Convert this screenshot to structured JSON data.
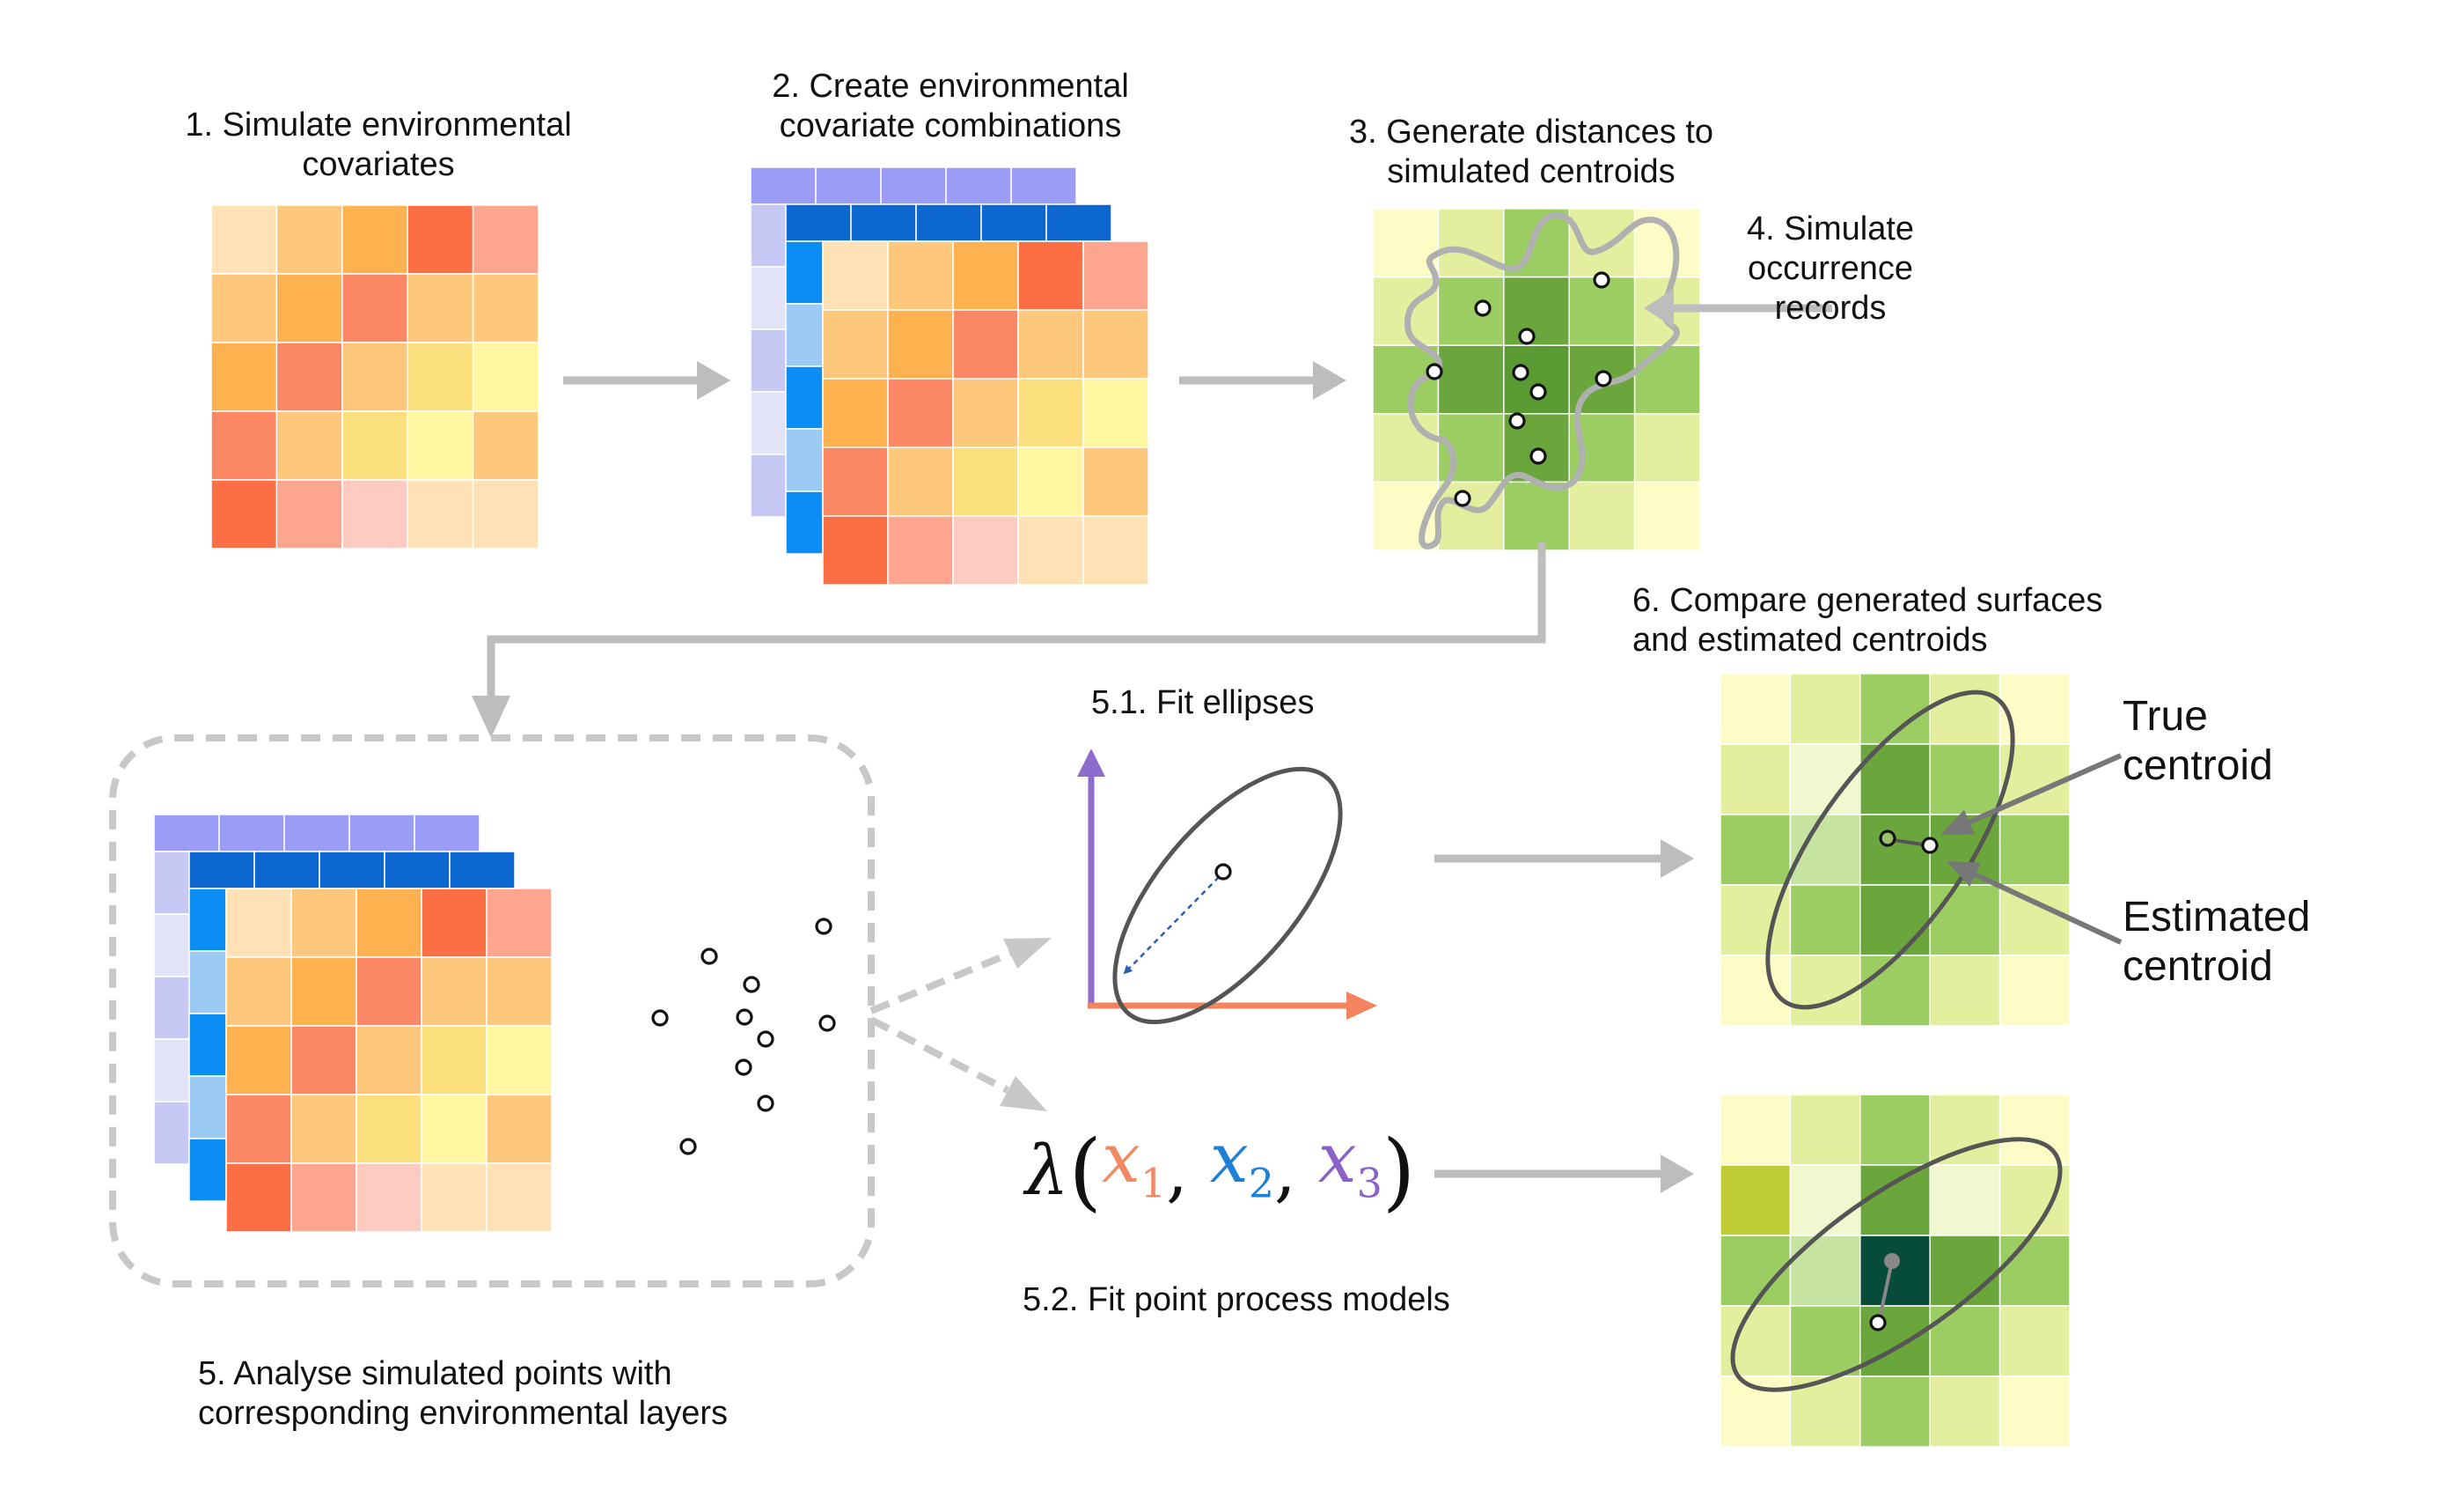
{
  "steps": {
    "s1": "1. Simulate environmental\ncovariates",
    "s2": "2. Create environmental\ncovariate combinations",
    "s3": "3. Generate distances to\nsimulated centroids",
    "s4": "4. Simulate\noccurrence\nrecords",
    "s5": "5. Analyse simulated points with\ncorresponding environmental layers",
    "s51": "5.1. Fit ellipses",
    "s52": "5.2. Fit point process models",
    "s6": "6. Compare generated surfaces\nand estimated centroids"
  },
  "callouts": {
    "true_centroid": "True\ncentroid",
    "estimated_centroid": "Estimated\ncentroid"
  },
  "formula": {
    "lambda": "λ",
    "open": "(",
    "close": ")",
    "sep": ", ",
    "x1": "x",
    "s1": "1",
    "x2": "x",
    "s2": "2",
    "x3": "x",
    "s3": "3"
  },
  "colors": {
    "arrow": "#bdbdbd",
    "dash": "#c8c8c8",
    "outline": "#555555",
    "x1": "#f08a63",
    "x2": "#1e7fd6",
    "x3": "#8b62c8",
    "axis_y": "#8e6ccd",
    "axis_x": "#f4845f",
    "warm_grid": [
      [
        "#fee2b6",
        "#fdc87b",
        "#fdb14f",
        "#fc6f45",
        "#fda58e"
      ],
      [
        "#fdc87b",
        "#fdb14f",
        "#fc8765",
        "#fdc87b",
        "#fdc87b"
      ],
      [
        "#fdb14f",
        "#fc8765",
        "#fdc87b",
        "#fde07e",
        "#fef6a0"
      ],
      [
        "#fc8765",
        "#fdc87b",
        "#fde07e",
        "#fef6a0",
        "#fdc87b"
      ],
      [
        "#fc6f45",
        "#fda58e",
        "#fecbc0",
        "#fee2b6",
        "#fee2b6"
      ]
    ],
    "green_grid": [
      [
        "#fefcc6",
        "#e3ee9f",
        "#9ccd63",
        "#e3ee9f",
        "#fefcc6"
      ],
      [
        "#e3ee9f",
        "#9ccd63",
        "#6aa63b",
        "#9ccd63",
        "#e3ee9f"
      ],
      [
        "#9ccd63",
        "#6aa63b",
        "#5a9a33",
        "#6aa63b",
        "#9ccd63"
      ],
      [
        "#e3ee9f",
        "#9ccd63",
        "#6aa63b",
        "#9ccd63",
        "#e3ee9f"
      ],
      [
        "#fefcc6",
        "#e3ee9f",
        "#9ccd63",
        "#e3ee9f",
        "#fefcc6"
      ]
    ],
    "green_grid_6a": [
      [
        "#fefcc6",
        "#e3ee9f",
        "#9ccd63",
        "#e3ee9f",
        "#fefcc6"
      ],
      [
        "#e3ee9f",
        "#f1f7cf",
        "#6aa63b",
        "#9ccd63",
        "#e3ee9f"
      ],
      [
        "#9ccd63",
        "#c7e3a1",
        "#6aa63b",
        "#6aa63b",
        "#9ccd63"
      ],
      [
        "#e3ee9f",
        "#9ccd63",
        "#6aa63b",
        "#9ccd63",
        "#e3ee9f"
      ],
      [
        "#fefcc6",
        "#e3ee9f",
        "#9ccd63",
        "#e3ee9f",
        "#fefcc6"
      ]
    ],
    "green_grid_6b": [
      [
        "#fefcc6",
        "#e3ee9f",
        "#9ccd63",
        "#e3ee9f",
        "#fefcc6"
      ],
      [
        "#c0cc34",
        "#f1f7cf",
        "#6aa63b",
        "#f1f7cf",
        "#e3ee9f"
      ],
      [
        "#9ccd63",
        "#c7e3a1",
        "#074b3b",
        "#6aa63b",
        "#9ccd63"
      ],
      [
        "#e3ee9f",
        "#9ccd63",
        "#6aa63b",
        "#9ccd63",
        "#e3ee9f"
      ],
      [
        "#fefcc6",
        "#e3ee9f",
        "#9ccd63",
        "#e3ee9f",
        "#fefcc6"
      ]
    ],
    "purple_layer": [
      "#9a9cf5",
      "#c8c8f5",
      "#e3e3f7",
      "#c8c8f5",
      "#e3e3f7",
      "#c8c8f5"
    ],
    "blue_layer": [
      "#0c68d0",
      "#0c8df4",
      "#9bcaf5",
      "#0c8df4",
      "#9bcaf5",
      "#0c8df4"
    ]
  }
}
